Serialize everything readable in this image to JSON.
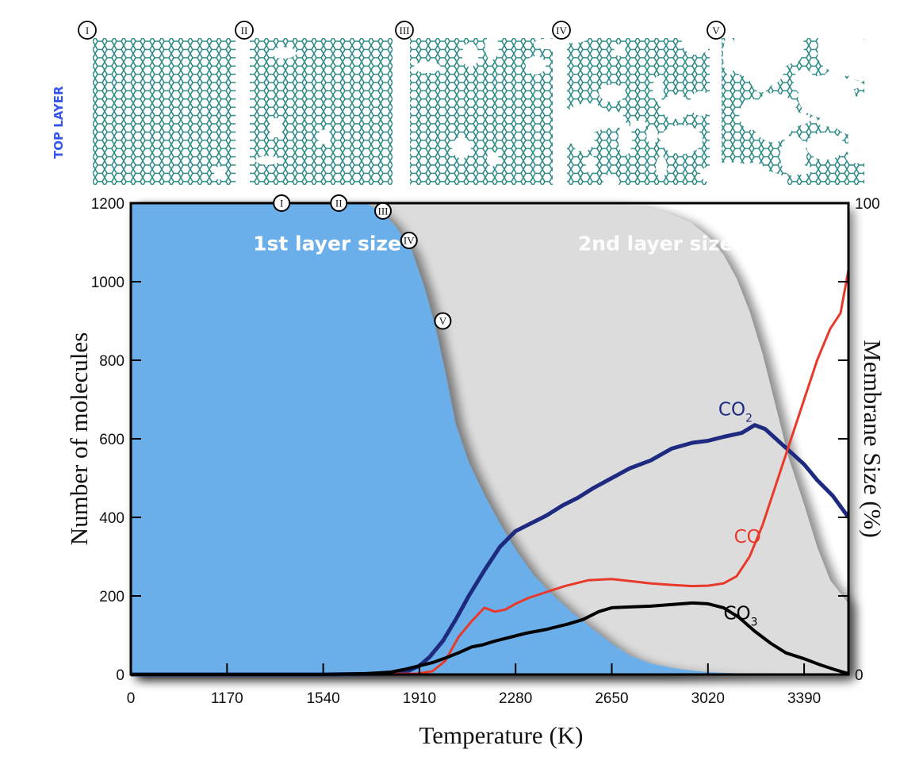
{
  "panel": {
    "side_label": "TOP LAYER",
    "snapshots": [
      {
        "marker": "I",
        "damage": 0.02
      },
      {
        "marker": "II",
        "damage": 0.06
      },
      {
        "marker": "III",
        "damage": 0.12
      },
      {
        "marker": "IV",
        "damage": 0.3
      },
      {
        "marker": "V",
        "damage": 0.62
      }
    ]
  },
  "chart_data": {
    "type": "area",
    "title": "",
    "xlabel": "Temperature (K)",
    "ylabel": "Number of molecules",
    "y2label": "Membrane Size (%)",
    "x_ticks": [
      "0",
      "1170",
      "1540",
      "1910",
      "2280",
      "2650",
      "3020",
      "3390"
    ],
    "x_tick_values": [
      0,
      1170,
      1540,
      1910,
      2280,
      2650,
      3020,
      3390
    ],
    "xlim": [
      0,
      3570
    ],
    "y_ticks": [
      "0",
      "200",
      "400",
      "600",
      "800",
      "1000",
      "1200"
    ],
    "ylim": [
      0,
      1200
    ],
    "y2_ticks": [
      "0",
      "100"
    ],
    "y2lim": [
      0,
      100
    ],
    "grid": false,
    "regions": [
      {
        "name": "1st layer size",
        "color": "#6aaeea",
        "axis": "right",
        "points": [
          [
            0,
            100
          ],
          [
            1170,
            100
          ],
          [
            1540,
            100
          ],
          [
            1700,
            100
          ],
          [
            1760,
            98.5
          ],
          [
            1820,
            95
          ],
          [
            1880,
            90
          ],
          [
            1930,
            82
          ],
          [
            1970,
            74
          ],
          [
            2010,
            64
          ],
          [
            2050,
            53
          ],
          [
            2100,
            45
          ],
          [
            2160,
            38
          ],
          [
            2220,
            32
          ],
          [
            2280,
            26.5
          ],
          [
            2350,
            21
          ],
          [
            2420,
            17
          ],
          [
            2500,
            13
          ],
          [
            2580,
            9.5
          ],
          [
            2650,
            6.5
          ],
          [
            2720,
            4
          ],
          [
            2800,
            2.3
          ],
          [
            2900,
            1.2
          ],
          [
            3020,
            0.5
          ],
          [
            3150,
            0.2
          ],
          [
            3300,
            0
          ],
          [
            3570,
            0
          ]
        ]
      },
      {
        "name": "2nd layer size",
        "color": "#dcdcdc",
        "axis": "right",
        "points": [
          [
            0,
            100
          ],
          [
            2650,
            100
          ],
          [
            2760,
            99.5
          ],
          [
            2860,
            98
          ],
          [
            2950,
            96
          ],
          [
            3020,
            93
          ],
          [
            3080,
            89
          ],
          [
            3130,
            84
          ],
          [
            3180,
            77
          ],
          [
            3230,
            68
          ],
          [
            3280,
            57
          ],
          [
            3330,
            46
          ],
          [
            3390,
            36
          ],
          [
            3440,
            27
          ],
          [
            3490,
            20
          ],
          [
            3570,
            15
          ],
          [
            3570,
            0
          ]
        ]
      }
    ],
    "series": [
      {
        "name": "CO2",
        "label_main": "CO",
        "label_sub": "2",
        "color": "#1e2a80",
        "points": [
          [
            0,
            0
          ],
          [
            1170,
            0
          ],
          [
            1540,
            0
          ],
          [
            1800,
            2
          ],
          [
            1870,
            10
          ],
          [
            1910,
            22
          ],
          [
            1950,
            45
          ],
          [
            2000,
            85
          ],
          [
            2050,
            140
          ],
          [
            2100,
            200
          ],
          [
            2160,
            265
          ],
          [
            2220,
            325
          ],
          [
            2280,
            365
          ],
          [
            2340,
            385
          ],
          [
            2400,
            405
          ],
          [
            2460,
            430
          ],
          [
            2520,
            450
          ],
          [
            2580,
            475
          ],
          [
            2650,
            500
          ],
          [
            2720,
            525
          ],
          [
            2800,
            545
          ],
          [
            2880,
            575
          ],
          [
            2960,
            590
          ],
          [
            3020,
            595
          ],
          [
            3080,
            605
          ],
          [
            3150,
            615
          ],
          [
            3200,
            635
          ],
          [
            3240,
            625
          ],
          [
            3290,
            595
          ],
          [
            3340,
            565
          ],
          [
            3390,
            535
          ],
          [
            3440,
            495
          ],
          [
            3500,
            455
          ],
          [
            3570,
            400
          ]
        ]
      },
      {
        "name": "CO",
        "label_main": "CO",
        "label_sub": "",
        "color": "#e8392a",
        "points": [
          [
            0,
            0
          ],
          [
            1540,
            0
          ],
          [
            1900,
            2
          ],
          [
            1960,
            8
          ],
          [
            2010,
            35
          ],
          [
            2060,
            95
          ],
          [
            2110,
            135
          ],
          [
            2160,
            170
          ],
          [
            2200,
            160
          ],
          [
            2240,
            165
          ],
          [
            2280,
            180
          ],
          [
            2330,
            195
          ],
          [
            2400,
            210
          ],
          [
            2470,
            225
          ],
          [
            2560,
            240
          ],
          [
            2650,
            243
          ],
          [
            2720,
            238
          ],
          [
            2800,
            232
          ],
          [
            2880,
            228
          ],
          [
            2960,
            225
          ],
          [
            3020,
            226
          ],
          [
            3080,
            232
          ],
          [
            3130,
            250
          ],
          [
            3180,
            300
          ],
          [
            3230,
            380
          ],
          [
            3280,
            480
          ],
          [
            3330,
            580
          ],
          [
            3390,
            700
          ],
          [
            3440,
            800
          ],
          [
            3490,
            880
          ],
          [
            3530,
            920
          ],
          [
            3570,
            1030
          ]
        ]
      },
      {
        "name": "CO3",
        "label_main": "CO",
        "label_sub": "3",
        "color": "#000000",
        "points": [
          [
            0,
            0
          ],
          [
            1540,
            0
          ],
          [
            1700,
            2
          ],
          [
            1800,
            6
          ],
          [
            1860,
            14
          ],
          [
            1910,
            22
          ],
          [
            1960,
            30
          ],
          [
            2010,
            42
          ],
          [
            2060,
            55
          ],
          [
            2110,
            70
          ],
          [
            2150,
            75
          ],
          [
            2200,
            85
          ],
          [
            2260,
            95
          ],
          [
            2320,
            105
          ],
          [
            2400,
            115
          ],
          [
            2480,
            128
          ],
          [
            2540,
            140
          ],
          [
            2600,
            160
          ],
          [
            2650,
            170
          ],
          [
            2720,
            172
          ],
          [
            2800,
            174
          ],
          [
            2880,
            178
          ],
          [
            2960,
            182
          ],
          [
            3020,
            180
          ],
          [
            3080,
            170
          ],
          [
            3140,
            145
          ],
          [
            3200,
            110
          ],
          [
            3260,
            80
          ],
          [
            3320,
            55
          ],
          [
            3390,
            40
          ],
          [
            3450,
            25
          ],
          [
            3510,
            12
          ],
          [
            3570,
            2
          ]
        ]
      }
    ],
    "markers": [
      {
        "label": "I",
        "x": 1380,
        "y": 1200
      },
      {
        "label": "II",
        "x": 1600,
        "y": 1200
      },
      {
        "label": "III",
        "x": 1770,
        "y": 1180
      },
      {
        "label": "IV",
        "x": 1870,
        "y": 1105
      },
      {
        "label": "V",
        "x": 2000,
        "y": 900
      }
    ],
    "annotations": [
      {
        "text": "1st layer size",
        "x": 1270,
        "y": 1100
      },
      {
        "text": "2nd layer size",
        "x": 2520,
        "y": 1100
      }
    ]
  }
}
